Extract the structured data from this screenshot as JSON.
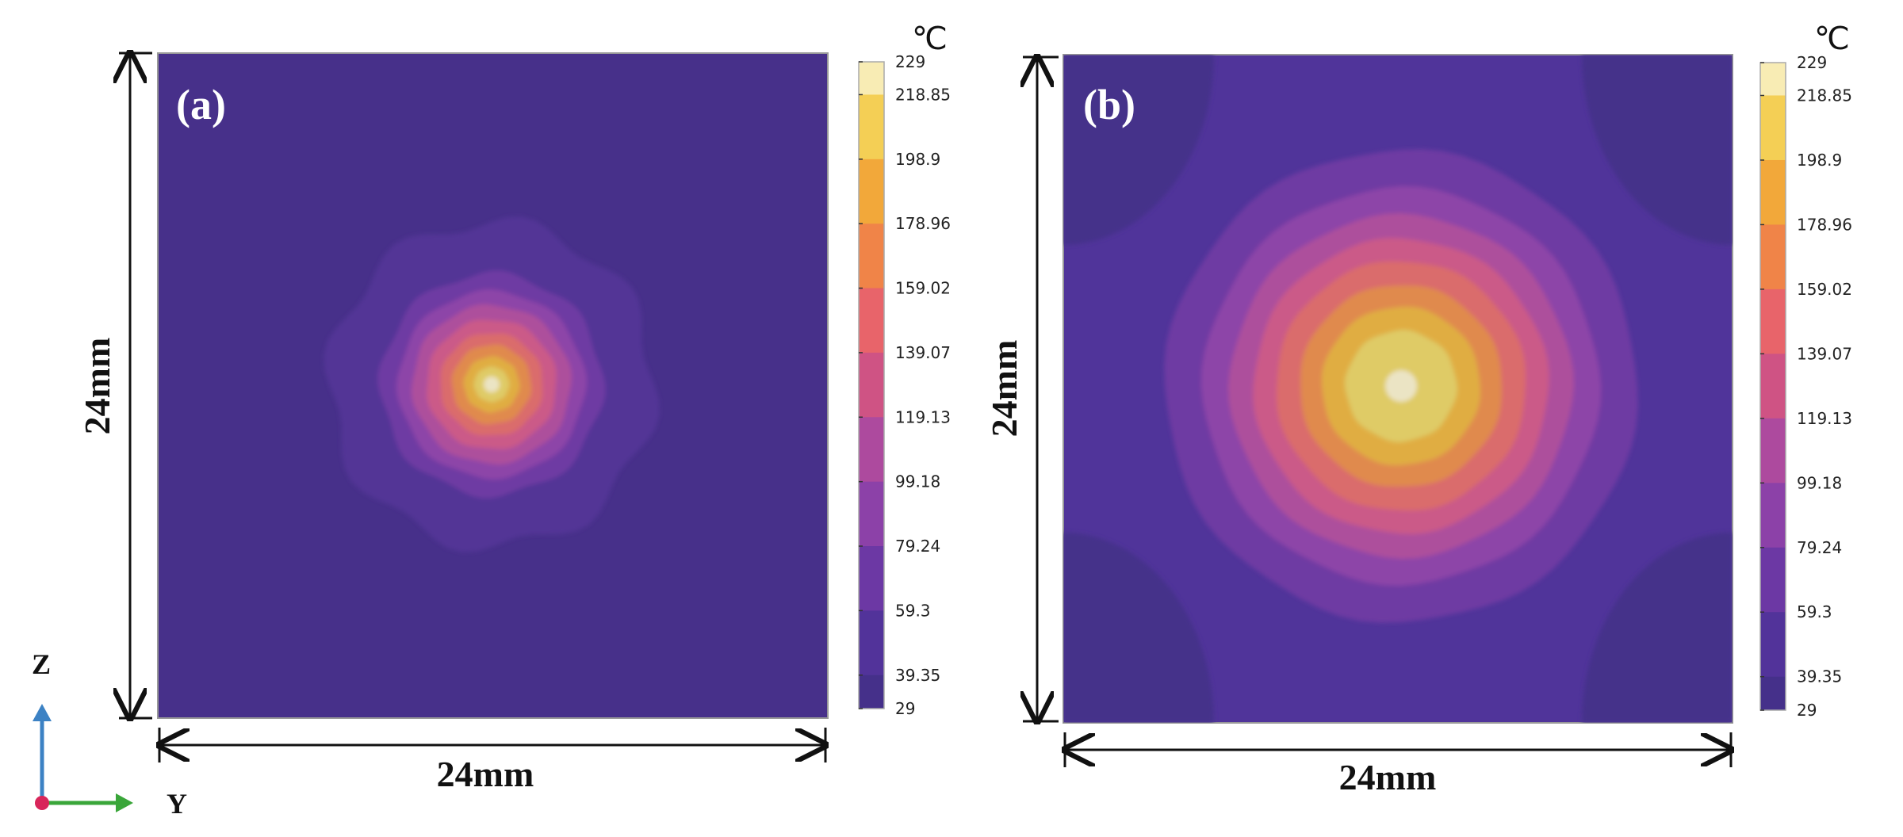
{
  "panels": [
    {
      "label": "(a)",
      "width_label": "24mm",
      "height_label": "24mm"
    },
    {
      "label": "(b)",
      "width_label": "24mm",
      "height_label": "24mm"
    }
  ],
  "colorbar": {
    "unit": "℃",
    "ticks": [
      "229",
      "218.85",
      "198.9",
      "178.96",
      "159.02",
      "139.07",
      "119.13",
      "99.18",
      "79.24",
      "59.3",
      "39.35",
      "29"
    ],
    "tick_values": [
      229,
      218.85,
      198.9,
      178.96,
      159.02,
      139.07,
      119.13,
      99.18,
      79.24,
      59.3,
      39.35,
      29
    ],
    "colors": [
      "#f8ecb4",
      "#f4cf55",
      "#f2a83a",
      "#f08448",
      "#e8646a",
      "#cf5384",
      "#ad4a9e",
      "#8c41a8",
      "#6c38a4",
      "#52339a",
      "#45308a"
    ]
  },
  "axes": {
    "z_label": "Z",
    "y_label": "Y"
  }
}
